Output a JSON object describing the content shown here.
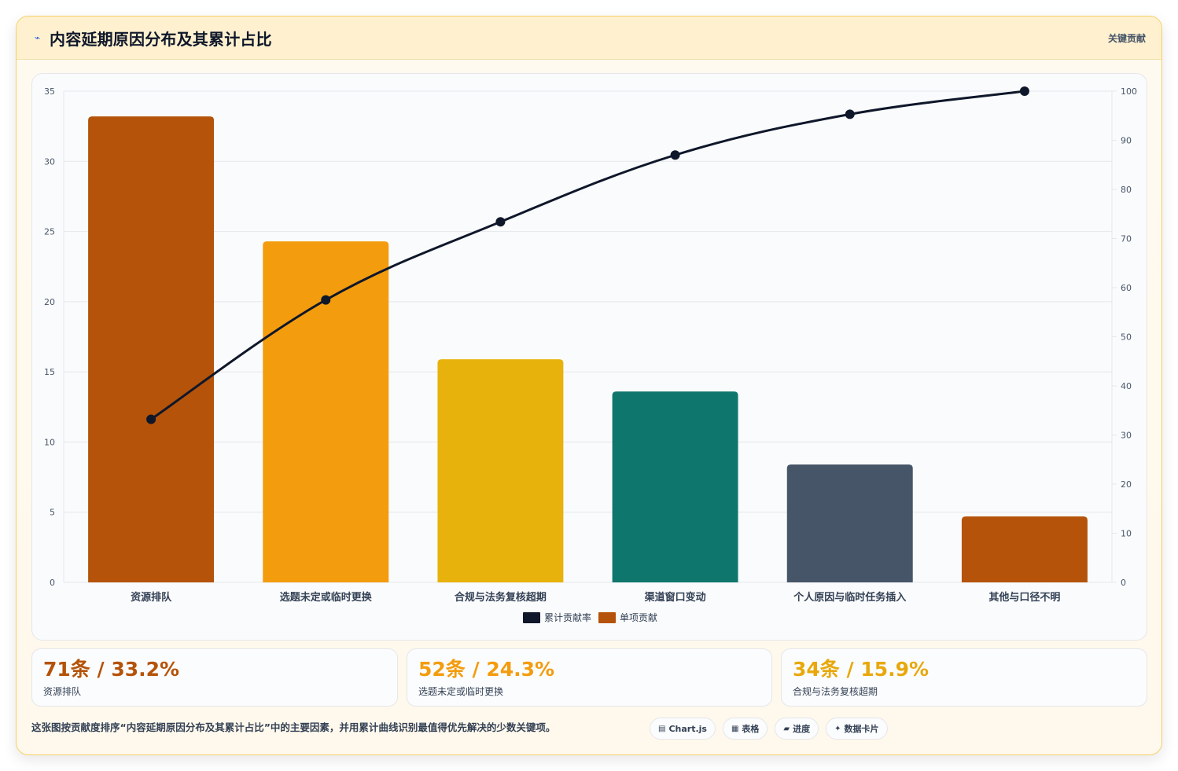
{
  "header": {
    "title_icon": "trend-line-icon",
    "title": "内容延期原因分布及其累计占比",
    "tag": "关键贡献"
  },
  "chart_data": {
    "type": "bar",
    "categories": [
      "资源排队",
      "选题未定或临时更换",
      "合规与法务复核超期",
      "渠道窗口变动",
      "个人原因与临时任务插入",
      "其他与口径不明"
    ],
    "series": [
      {
        "name": "单项贡献",
        "type": "bar",
        "axis": "left",
        "values": [
          33.2,
          24.3,
          15.9,
          13.6,
          8.4,
          4.7
        ]
      },
      {
        "name": "累计贡献率",
        "type": "line",
        "axis": "right",
        "values": [
          33.2,
          57.5,
          73.4,
          87.0,
          95.3,
          100
        ]
      }
    ],
    "bar_colors": [
      "#b45309",
      "#f39c0e",
      "#e8b20c",
      "#0f766e",
      "#475569",
      "#b45309"
    ],
    "line_color": "#0f172a",
    "y_left": {
      "min": 0,
      "max": 35,
      "ticks": [
        0,
        5,
        10,
        15,
        20,
        25,
        30,
        35
      ]
    },
    "y_right": {
      "min": 0,
      "max": 100,
      "ticks": [
        0,
        10,
        20,
        30,
        40,
        50,
        60,
        70,
        80,
        90,
        100
      ]
    },
    "grid": true,
    "legend_position": "bottom",
    "legend": [
      {
        "label": "累计贡献率",
        "color": "#0f172a"
      },
      {
        "label": "单项贡献",
        "color": "#b45309"
      }
    ]
  },
  "stats": [
    {
      "value": "71条 / 33.2%",
      "label": "资源排队",
      "color": "#b45309"
    },
    {
      "value": "52条 / 24.3%",
      "label": "选题未定或临时更换",
      "color": "#f39c0e"
    },
    {
      "value": "34条 / 15.9%",
      "label": "合规与法务复核超期",
      "color": "#e8a80c"
    }
  ],
  "footer": {
    "note": "这张图按贡献度排序“内容延期原因分布及其累计占比”中的主要因素，并用累计曲线识别最值得优先解决的少数关键项。",
    "pills": [
      {
        "icon": "chart-icon",
        "glyph": "▤",
        "label": "Chart.js"
      },
      {
        "icon": "table-icon",
        "glyph": "▦",
        "label": "表格"
      },
      {
        "icon": "progress-icon",
        "glyph": "▰",
        "label": "进度"
      },
      {
        "icon": "sparkle-icon",
        "glyph": "✦",
        "label": "数据卡片"
      }
    ]
  }
}
